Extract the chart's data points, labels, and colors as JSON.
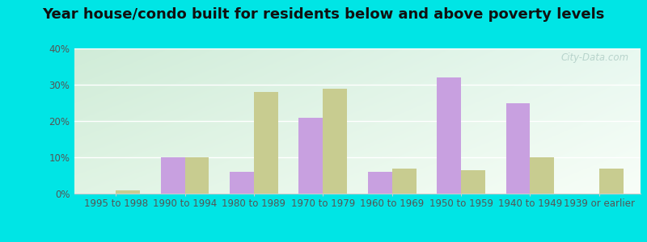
{
  "title": "Year house/condo built for residents below and above poverty levels",
  "categories": [
    "1995 to 1998",
    "1990 to 1994",
    "1980 to 1989",
    "1970 to 1979",
    "1960 to 1969",
    "1950 to 1959",
    "1940 to 1949",
    "1939 or earlier"
  ],
  "below_poverty": [
    0.0,
    10.0,
    6.0,
    21.0,
    6.0,
    32.0,
    25.0,
    0.0
  ],
  "above_poverty": [
    1.0,
    10.0,
    28.0,
    29.0,
    7.0,
    6.5,
    10.0,
    7.0
  ],
  "below_color": "#c8a0e0",
  "above_color": "#c8cc90",
  "outer_bg": "#00e5e5",
  "plot_bg_top_left": "#d0ecd8",
  "plot_bg_bottom_right": "#f8fef8",
  "grid_color": "#ffffff",
  "spine_color": "#cccccc",
  "text_color": "#555555",
  "ylim": [
    0,
    40
  ],
  "yticks": [
    0,
    10,
    20,
    30,
    40
  ],
  "ytick_labels": [
    "0%",
    "10%",
    "20%",
    "30%",
    "40%"
  ],
  "bar_width": 0.35,
  "title_fontsize": 13,
  "tick_fontsize": 8.5,
  "legend_fontsize": 9,
  "watermark": "City-Data.com"
}
